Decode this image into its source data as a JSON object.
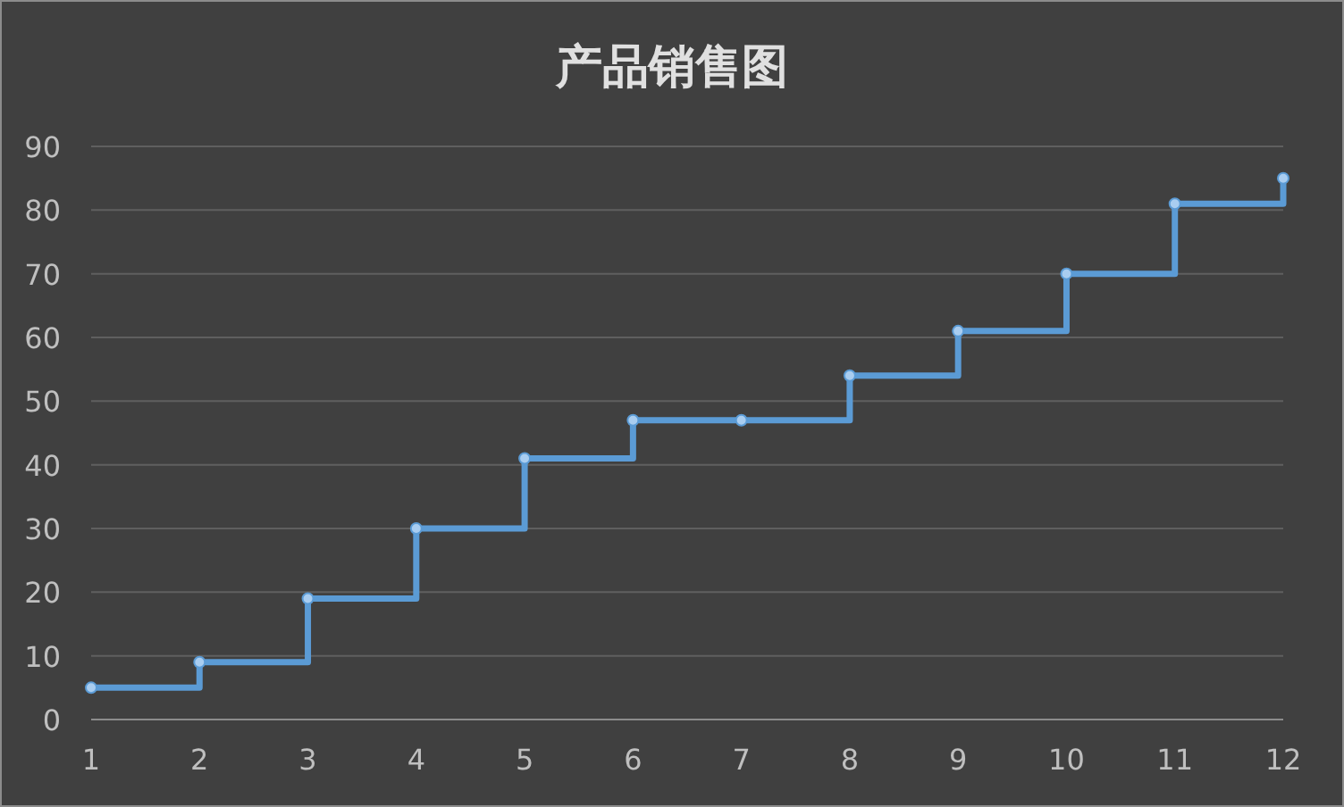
{
  "chart_data": {
    "type": "step",
    "title": "产品销售图",
    "x": [
      1,
      2,
      3,
      4,
      5,
      6,
      7,
      8,
      9,
      10,
      11,
      12
    ],
    "series": [
      {
        "color": "#5b9bd5",
        "values": [
          5,
          9,
          19,
          30,
          41,
          47,
          47,
          54,
          61,
          70,
          81,
          85
        ]
      }
    ],
    "xlim": [
      1,
      12
    ],
    "xticks": [
      1,
      2,
      3,
      4,
      5,
      6,
      7,
      8,
      9,
      10,
      11,
      12
    ],
    "ylim": [
      0,
      90
    ],
    "yticks": [
      0,
      10,
      20,
      30,
      40,
      50,
      60,
      70,
      80,
      90
    ],
    "grid": "y",
    "marker": "circle",
    "line_style": "solid"
  }
}
